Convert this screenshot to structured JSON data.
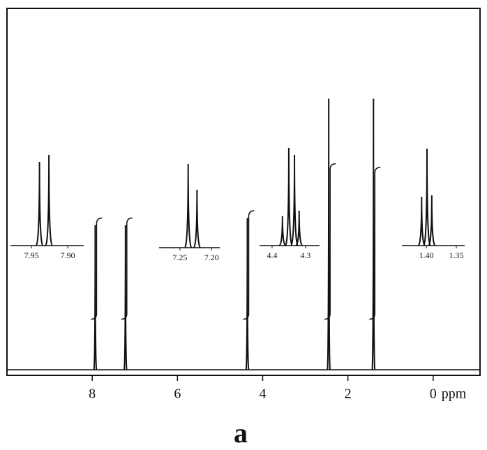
{
  "chart_data": {
    "type": "line",
    "x_label": "ppm",
    "xlim": [
      10,
      -1.1
    ],
    "xticks": [
      8,
      6,
      4,
      2,
      0
    ],
    "ylim": [
      0,
      100
    ],
    "peaks": {
      "x": [
        7.93,
        7.22,
        4.36,
        2.45,
        1.4
      ],
      "values": [
        40,
        40,
        42,
        75,
        75
      ]
    },
    "integrals": [
      42,
      42,
      44,
      57,
      56
    ],
    "insets": [
      {
        "xlim": [
          7.979,
          7.878
        ],
        "xticks": [
          7.95,
          {
            "value": 7.9,
            "label": "7.90"
          }
        ],
        "ylim": [
          0,
          150
        ],
        "x": [
          7.939,
          7.926
        ],
        "values": [
          120,
          130
        ]
      },
      {
        "xlim": [
          7.283,
          7.187
        ],
        "xticks": [
          7.25,
          {
            "value": 7.2,
            "label": "7.20"
          }
        ],
        "ylim": [
          0,
          150
        ],
        "x": [
          7.237,
          7.223
        ],
        "values": [
          120,
          83
        ]
      },
      {
        "xlim": [
          4.4375,
          4.258
        ],
        "xticks": [
          4.4,
          4.3
        ],
        "ylim": [
          0,
          150
        ],
        "x": [
          4.369,
          4.35,
          4.333,
          4.319
        ],
        "values": [
          42,
          140,
          130,
          50
        ]
      },
      {
        "xlim": [
          1.441,
          1.336
        ],
        "xticks": [
          {
            "value": 1.4,
            "label": "1.40"
          },
          1.35
        ],
        "ylim": [
          0,
          150
        ],
        "x": [
          1.408,
          1.399,
          1.391
        ],
        "values": [
          70,
          139,
          72
        ]
      }
    ]
  },
  "caption": "a"
}
